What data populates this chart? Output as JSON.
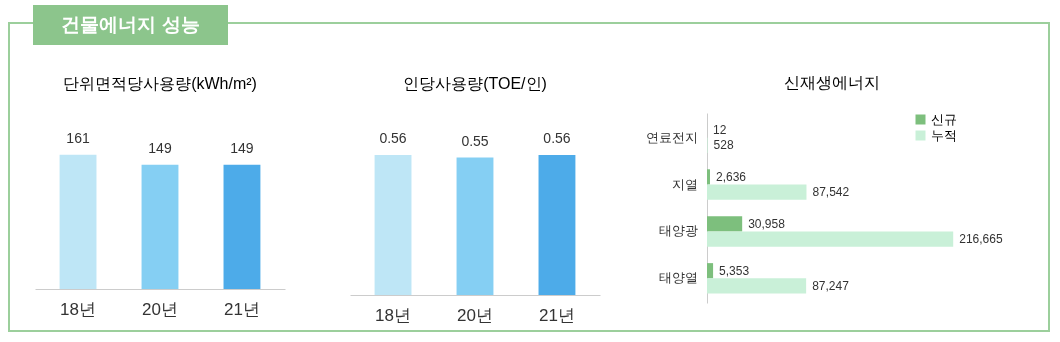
{
  "chart_data": [
    {
      "type": "other",
      "title": "건물에너지 성능"
    },
    {
      "type": "bar",
      "title": "단위면적당사용량(kWh/m²)",
      "categories": [
        "18년",
        "20년",
        "21년"
      ],
      "values": [
        161,
        149,
        149
      ],
      "colors": [
        "#bee6f6",
        "#85cff3",
        "#4dabe9"
      ],
      "data_labels": true
    },
    {
      "type": "bar",
      "title": "인당사용량(TOE/인)",
      "categories": [
        "18년",
        "20년",
        "21년"
      ],
      "values": [
        0.56,
        0.55,
        0.56
      ],
      "colors": [
        "#bee6f6",
        "#85cff3",
        "#4dabe9"
      ],
      "data_labels": true
    },
    {
      "type": "bar",
      "title": "신재생에너지",
      "orientation": "horizontal",
      "categories": [
        "연료전지",
        "지열",
        "태양광",
        "태양열"
      ],
      "legend": "top right",
      "series": [
        {
          "name": "신규",
          "color": "#7dbf7d",
          "values": [
            12,
            2636,
            30958,
            5353
          ],
          "value_labels": [
            "12",
            "2,636",
            "30,958",
            "5,353"
          ]
        },
        {
          "name": "누적",
          "color": "#c9f0d8",
          "values": [
            528,
            87542,
            216665,
            87247
          ],
          "value_labels": [
            "528",
            "87,542",
            "216,665",
            "87,247"
          ]
        }
      ]
    }
  ]
}
